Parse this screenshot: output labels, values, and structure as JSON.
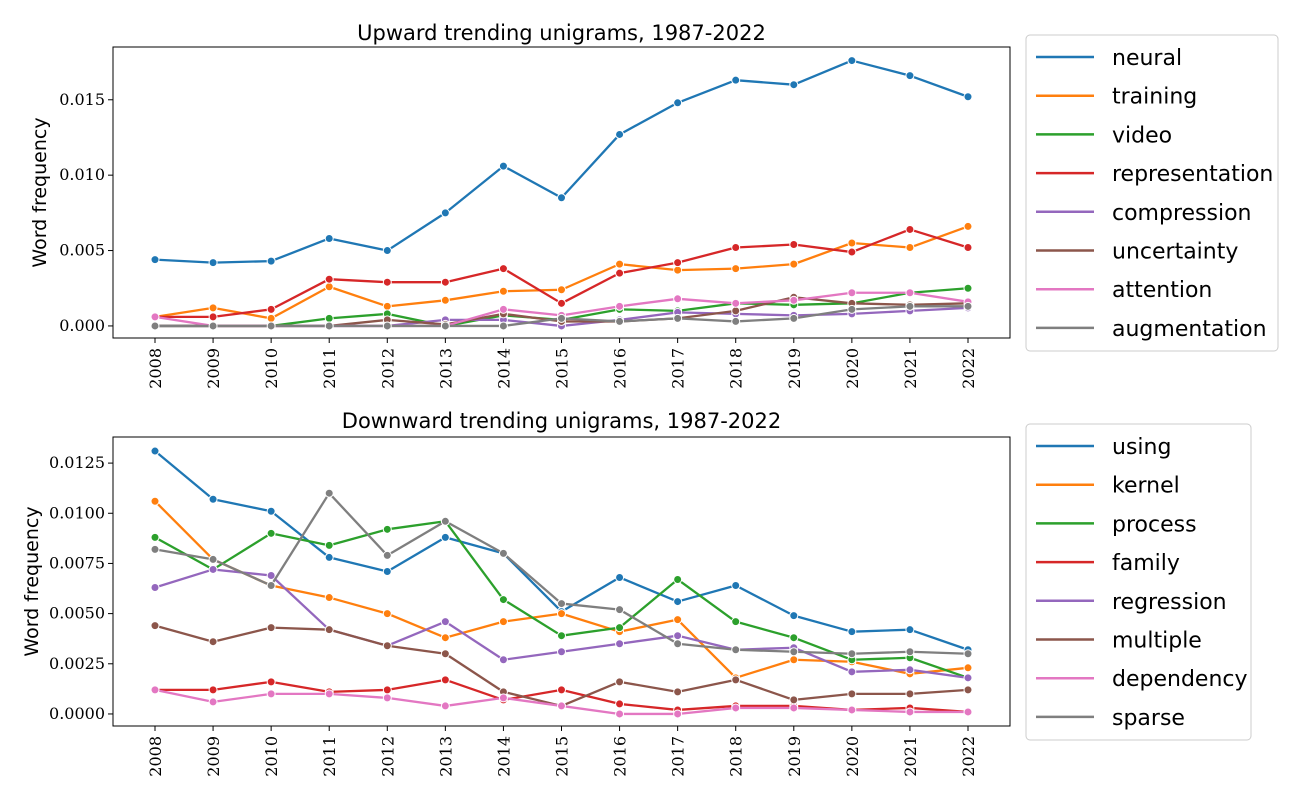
{
  "chart_data": [
    {
      "type": "line",
      "title": "Upward trending unigrams, 1987-2022",
      "xlabel": "",
      "ylabel": "Word frequency",
      "x": [
        "2008",
        "2009",
        "2010",
        "2011",
        "2012",
        "2013",
        "2014",
        "2015",
        "2016",
        "2017",
        "2018",
        "2019",
        "2020",
        "2021",
        "2022"
      ],
      "ylim": [
        -0.0008,
        0.0185
      ],
      "yticks": [
        0.0,
        0.005,
        0.01,
        0.015
      ],
      "ytick_labels": [
        "0.000",
        "0.005",
        "0.010",
        "0.015"
      ],
      "legend_position": "outside right",
      "series": [
        {
          "name": "neural",
          "color": "#1f77b4",
          "values": [
            0.0044,
            0.0042,
            0.0043,
            0.0058,
            0.005,
            0.0075,
            0.0106,
            0.0085,
            0.0127,
            0.0148,
            0.0163,
            0.016,
            0.0176,
            0.0166,
            0.0152
          ]
        },
        {
          "name": "training",
          "color": "#ff7f0e",
          "values": [
            0.0006,
            0.0012,
            0.0005,
            0.0026,
            0.0013,
            0.0017,
            0.0023,
            0.0024,
            0.0041,
            0.0037,
            0.0038,
            0.0041,
            0.0055,
            0.0052,
            0.0066
          ]
        },
        {
          "name": "video",
          "color": "#2ca02c",
          "values": [
            0.0,
            0.0,
            0.0,
            0.0005,
            0.0008,
            0.0,
            0.0007,
            0.0004,
            0.0011,
            0.001,
            0.0015,
            0.0014,
            0.0015,
            0.0022,
            0.0025
          ]
        },
        {
          "name": "representation",
          "color": "#d62728",
          "values": [
            0.0006,
            0.0006,
            0.0011,
            0.0031,
            0.0029,
            0.0029,
            0.0038,
            0.0015,
            0.0035,
            0.0042,
            0.0052,
            0.0054,
            0.0049,
            0.0064,
            0.0052
          ]
        },
        {
          "name": "compression",
          "color": "#9467bd",
          "values": [
            0.0,
            0.0,
            0.0,
            0.0,
            0.0,
            0.0004,
            0.0004,
            0.0,
            0.0004,
            0.0009,
            0.0008,
            0.0007,
            0.0008,
            0.001,
            0.0012
          ]
        },
        {
          "name": "uncertainty",
          "color": "#8c564b",
          "values": [
            0.0,
            0.0,
            0.0,
            0.0,
            0.0004,
            0.0001,
            0.0008,
            0.0003,
            0.0003,
            0.0005,
            0.001,
            0.0019,
            0.0015,
            0.0014,
            0.0015
          ]
        },
        {
          "name": "attention",
          "color": "#e377c2",
          "values": [
            0.0006,
            0.0,
            0.0,
            0.0,
            0.0,
            0.0,
            0.0011,
            0.0007,
            0.0013,
            0.0018,
            0.0015,
            0.0017,
            0.0022,
            0.0022,
            0.0016
          ]
        },
        {
          "name": "augmentation",
          "color": "#7f7f7f",
          "values": [
            0.0,
            0.0,
            0.0,
            0.0,
            0.0,
            0.0,
            0.0,
            0.0005,
            0.0003,
            0.0005,
            0.0003,
            0.0005,
            0.0011,
            0.0013,
            0.0013
          ]
        }
      ]
    },
    {
      "type": "line",
      "title": "Downward trending unigrams, 1987-2022",
      "xlabel": "",
      "ylabel": "Word frequency",
      "x": [
        "2008",
        "2009",
        "2010",
        "2011",
        "2012",
        "2013",
        "2014",
        "2015",
        "2016",
        "2017",
        "2018",
        "2019",
        "2020",
        "2021",
        "2022"
      ],
      "ylim": [
        -0.0006,
        0.0138
      ],
      "yticks": [
        0.0,
        0.0025,
        0.005,
        0.0075,
        0.01,
        0.0125
      ],
      "ytick_labels": [
        "0.0000",
        "0.0025",
        "0.0050",
        "0.0075",
        "0.0100",
        "0.0125"
      ],
      "legend_position": "outside right",
      "series": [
        {
          "name": "using",
          "color": "#1f77b4",
          "values": [
            0.0131,
            0.0107,
            0.0101,
            0.0078,
            0.0071,
            0.0088,
            0.008,
            0.0051,
            0.0068,
            0.0056,
            0.0064,
            0.0049,
            0.0041,
            0.0042,
            0.0032
          ]
        },
        {
          "name": "kernel",
          "color": "#ff7f0e",
          "values": [
            0.0106,
            0.0077,
            0.0064,
            0.0058,
            0.005,
            0.0038,
            0.0046,
            0.005,
            0.0041,
            0.0047,
            0.0018,
            0.0027,
            0.0026,
            0.002,
            0.0023
          ]
        },
        {
          "name": "process",
          "color": "#2ca02c",
          "values": [
            0.0088,
            0.0072,
            0.009,
            0.0084,
            0.0092,
            0.0096,
            0.0057,
            0.0039,
            0.0043,
            0.0067,
            0.0046,
            0.0038,
            0.0027,
            0.0028,
            0.0018
          ]
        },
        {
          "name": "family",
          "color": "#d62728",
          "values": [
            0.0012,
            0.0012,
            0.0016,
            0.0011,
            0.0012,
            0.0017,
            0.0007,
            0.0012,
            0.0005,
            0.0002,
            0.0004,
            0.0004,
            0.0002,
            0.0003,
            0.0001
          ]
        },
        {
          "name": "regression",
          "color": "#9467bd",
          "values": [
            0.0063,
            0.0072,
            0.0069,
            0.0042,
            0.0034,
            0.0046,
            0.0027,
            0.0031,
            0.0035,
            0.0039,
            0.0032,
            0.0033,
            0.0021,
            0.0022,
            0.0018
          ]
        },
        {
          "name": "multiple",
          "color": "#8c564b",
          "values": [
            0.0044,
            0.0036,
            0.0043,
            0.0042,
            0.0034,
            0.003,
            0.0011,
            0.0004,
            0.0016,
            0.0011,
            0.0017,
            0.0007,
            0.001,
            0.001,
            0.0012
          ]
        },
        {
          "name": "dependency",
          "color": "#e377c2",
          "values": [
            0.0012,
            0.0006,
            0.001,
            0.001,
            0.0008,
            0.0004,
            0.0008,
            0.0004,
            0.0,
            0.0,
            0.0003,
            0.0003,
            0.0002,
            0.0001,
            0.0001
          ]
        },
        {
          "name": "sparse",
          "color": "#7f7f7f",
          "values": [
            0.0082,
            0.0077,
            0.0064,
            0.011,
            0.0079,
            0.0096,
            0.008,
            0.0055,
            0.0052,
            0.0035,
            0.0032,
            0.0031,
            0.003,
            0.0031,
            0.003
          ]
        }
      ]
    }
  ]
}
